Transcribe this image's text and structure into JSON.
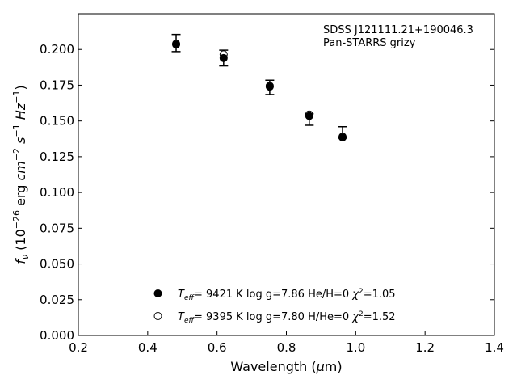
{
  "chart_data": {
    "type": "scatter",
    "xlabel": "Wavelength (μm)",
    "ylabel": "f_ν (10^-26 erg cm^-2 s^-1 Hz^-1)",
    "xlim": [
      0.2,
      1.4
    ],
    "ylim": [
      0.0,
      0.225
    ],
    "x_ticks": [
      "0.2",
      "0.4",
      "0.6",
      "0.8",
      "1.0",
      "1.2",
      "1.4"
    ],
    "y_ticks": [
      "0.000",
      "0.025",
      "0.050",
      "0.075",
      "0.100",
      "0.125",
      "0.150",
      "0.175",
      "0.200"
    ],
    "grid": false,
    "annotations": [
      "SDSS J121111.21+190046.3",
      "Pan-STARRS grizy"
    ],
    "legend_position": "lower-center",
    "observed": {
      "x": [
        0.482,
        0.619,
        0.752,
        0.866,
        0.962
      ],
      "y": [
        0.2045,
        0.1945,
        0.1735,
        0.151,
        0.142
      ],
      "err_low": [
        0.006,
        0.006,
        0.005,
        0.004,
        0.004
      ],
      "err_high": [
        0.006,
        0.005,
        0.005,
        0.004,
        0.004
      ]
    },
    "series": [
      {
        "marker": "filled",
        "label": "T_eff=  9421 K  log g=7.86  He/H=0  χ2=1.05",
        "x": [
          0.482,
          0.619,
          0.752,
          0.866,
          0.962
        ],
        "y": [
          0.2035,
          0.194,
          0.174,
          0.1535,
          0.1385
        ]
      },
      {
        "marker": "open",
        "label": "T_eff=  9395 K  log g=7.80  H/He=0  χ2=1.52",
        "x": [
          0.482,
          0.619,
          0.752,
          0.866,
          0.962
        ],
        "y": [
          0.204,
          0.1965,
          0.1745,
          0.1545,
          0.139
        ]
      }
    ]
  }
}
